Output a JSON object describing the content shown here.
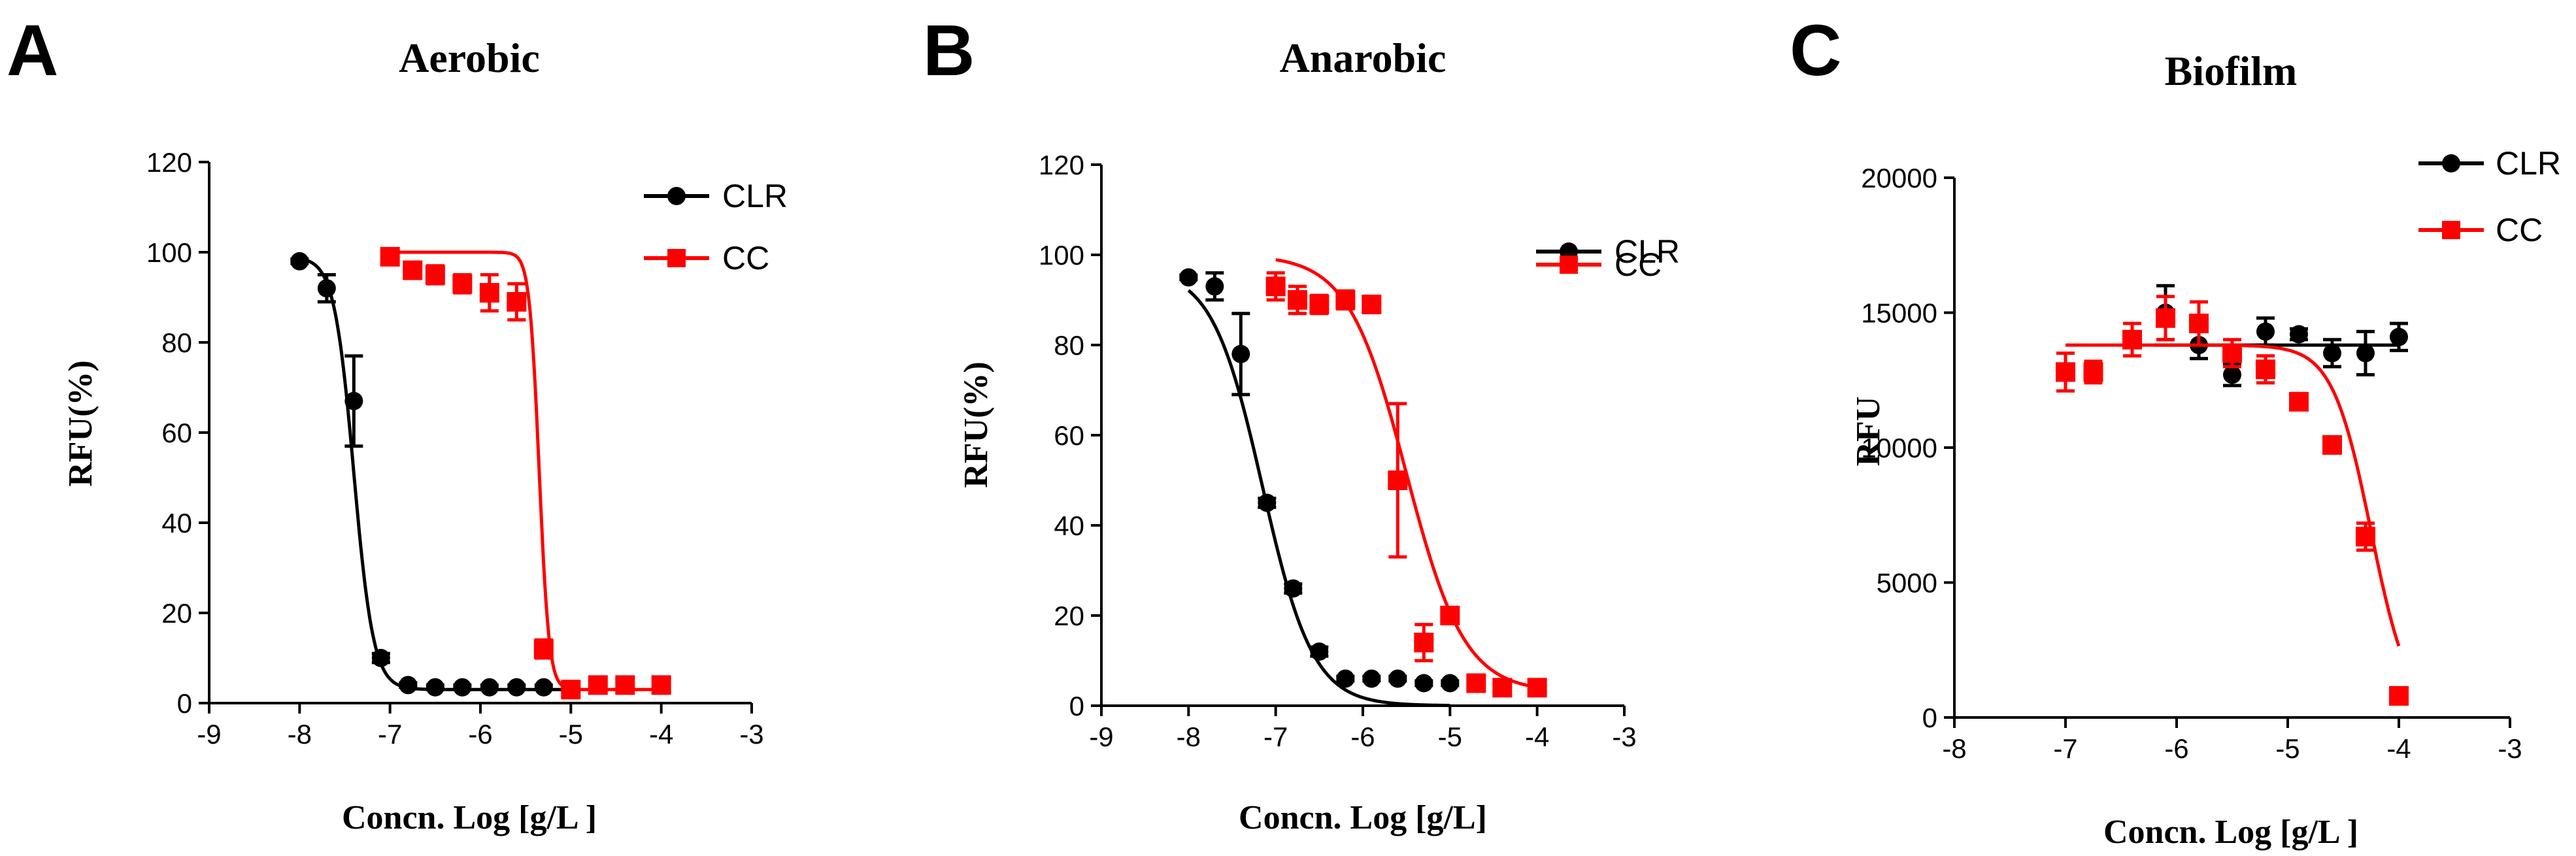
{
  "chart_data": [
    {
      "type": "scatter",
      "panel_label": "A",
      "title": "Aerobic",
      "xlabel": "Concn. Log [g/L ]",
      "ylabel": "RFU(%)",
      "xlim": [
        -9,
        -3
      ],
      "ylim": [
        0,
        120
      ],
      "xticks": [
        -9,
        -8,
        -7,
        -6,
        -5,
        -4,
        -3
      ],
      "yticks": [
        0,
        20,
        40,
        60,
        80,
        100,
        120
      ],
      "xtick_labels": [
        "-9",
        "-8",
        "-7",
        "-6",
        "-5",
        "-4",
        "-3"
      ],
      "ytick_labels": [
        "0",
        "20",
        "40",
        "60",
        "80",
        "100",
        "120"
      ],
      "legend_position": "top-right",
      "series": [
        {
          "name": "CLR",
          "color": "#000000",
          "marker": "circle",
          "x": [
            -8.0,
            -7.7,
            -7.4,
            -7.1,
            -6.8,
            -6.5,
            -6.2,
            -5.9,
            -5.6,
            -5.3,
            -5.0
          ],
          "y": [
            98,
            92,
            67,
            10,
            4,
            3.5,
            3.5,
            3.5,
            3.5,
            3.5,
            3
          ],
          "err": [
            0.5,
            3,
            10,
            1,
            0.5,
            0.5,
            0.5,
            0.5,
            0.5,
            0.5,
            0.5
          ],
          "fit": {
            "top": 99,
            "bottom": 3,
            "logEC50": -7.4,
            "hill": -4.0
          }
        },
        {
          "name": "CC",
          "color": "#ff0000",
          "marker": "square",
          "x": [
            -7.0,
            -6.75,
            -6.5,
            -6.2,
            -5.9,
            -5.6,
            -5.3,
            -5.0,
            -4.7,
            -4.4,
            -4.0
          ],
          "y": [
            99,
            96,
            95,
            93,
            91,
            89,
            12,
            3,
            4,
            4,
            4
          ],
          "err": [
            0.5,
            1,
            2,
            2,
            4,
            4,
            2,
            0.5,
            0.5,
            0.5,
            0.5
          ],
          "fit": {
            "top": 100,
            "bottom": 3,
            "logEC50": -5.35,
            "hill": -8.0
          }
        }
      ]
    },
    {
      "type": "scatter",
      "panel_label": "B",
      "title": "Anarobic",
      "xlabel": "Concn. Log [g/L]",
      "ylabel": "RFU(%)",
      "xlim": [
        -9,
        -3
      ],
      "ylim": [
        0,
        120
      ],
      "xticks": [
        -9,
        -8,
        -7,
        -6,
        -5,
        -4,
        -3
      ],
      "yticks": [
        0,
        20,
        40,
        60,
        80,
        100,
        120
      ],
      "xtick_labels": [
        "-9",
        "-8",
        "-7",
        "-6",
        "-5",
        "-4",
        "-3"
      ],
      "ytick_labels": [
        "0",
        "20",
        "40",
        "60",
        "80",
        "100",
        "120"
      ],
      "legend_position": "top-right",
      "series": [
        {
          "name": "CLR",
          "color": "#000000",
          "marker": "circle",
          "x": [
            -8.0,
            -7.7,
            -7.4,
            -7.1,
            -6.8,
            -6.5,
            -6.2,
            -5.9,
            -5.6,
            -5.3,
            -5.0
          ],
          "y": [
            95,
            93,
            78,
            45,
            26,
            12,
            6,
            6,
            6,
            5,
            5
          ],
          "err": [
            0.5,
            3,
            9,
            1,
            1,
            1,
            0.5,
            0.5,
            0.5,
            0.5,
            0.5
          ],
          "fit": {
            "top": 97,
            "bottom": 0,
            "logEC50": -7.15,
            "hill": -1.5
          }
        },
        {
          "name": "CC",
          "color": "#ff0000",
          "marker": "square",
          "x": [
            -7.0,
            -6.75,
            -6.5,
            -6.2,
            -5.9,
            -5.6,
            -5.3,
            -5.0,
            -4.7,
            -4.4,
            -4.0
          ],
          "y": [
            93,
            90,
            89,
            90,
            89,
            50,
            14,
            20,
            5,
            4,
            4
          ],
          "err": [
            3,
            3,
            2,
            2,
            1.5,
            17,
            4,
            1,
            1,
            1,
            1
          ],
          "fit": {
            "top": 100,
            "bottom": 3,
            "logEC50": -5.5,
            "hill": -1.3
          }
        }
      ]
    },
    {
      "type": "scatter",
      "panel_label": "C",
      "title": "Biofilm",
      "xlabel": "Concn. Log [g/L ]",
      "ylabel": "RFU",
      "xlim": [
        -8,
        -3
      ],
      "ylim": [
        0,
        20000
      ],
      "xticks": [
        -8,
        -7,
        -6,
        -5,
        -4,
        -3
      ],
      "yticks": [
        0,
        5000,
        10000,
        15000,
        20000
      ],
      "xtick_labels": [
        "-8",
        "-7",
        "-6",
        "-5",
        "-4",
        "-3"
      ],
      "ytick_labels": [
        "0",
        "5000",
        "10000",
        "15000",
        "20000"
      ],
      "legend_position": "top-right",
      "series": [
        {
          "name": "CLR",
          "color": "#000000",
          "marker": "circle",
          "x": [
            -6.1,
            -5.8,
            -5.5,
            -5.2,
            -4.9,
            -4.6,
            -4.3,
            -4.0
          ],
          "y": [
            15000,
            13800,
            12700,
            14300,
            14200,
            13500,
            13500,
            14100
          ],
          "err": [
            1000,
            500,
            400,
            500,
            200,
            500,
            800,
            500
          ],
          "fit": {
            "type": "flat",
            "value": 13800,
            "x_range": [
              -6.2,
              -4.0
            ]
          }
        },
        {
          "name": "CC",
          "color": "#ff0000",
          "marker": "square",
          "x": [
            -7.0,
            -6.75,
            -6.4,
            -6.1,
            -5.8,
            -5.5,
            -5.2,
            -4.9,
            -4.6,
            -4.3,
            -4.0
          ],
          "y": [
            12800,
            12800,
            14000,
            14800,
            14600,
            13500,
            12900,
            11700,
            10100,
            6700,
            800
          ],
          "err": [
            700,
            400,
            600,
            800,
            800,
            500,
            500,
            300,
            300,
            500,
            300
          ],
          "fit": {
            "top": 13800,
            "bottom": 0,
            "logEC50": -4.25,
            "hill": -2.5
          }
        }
      ]
    }
  ]
}
